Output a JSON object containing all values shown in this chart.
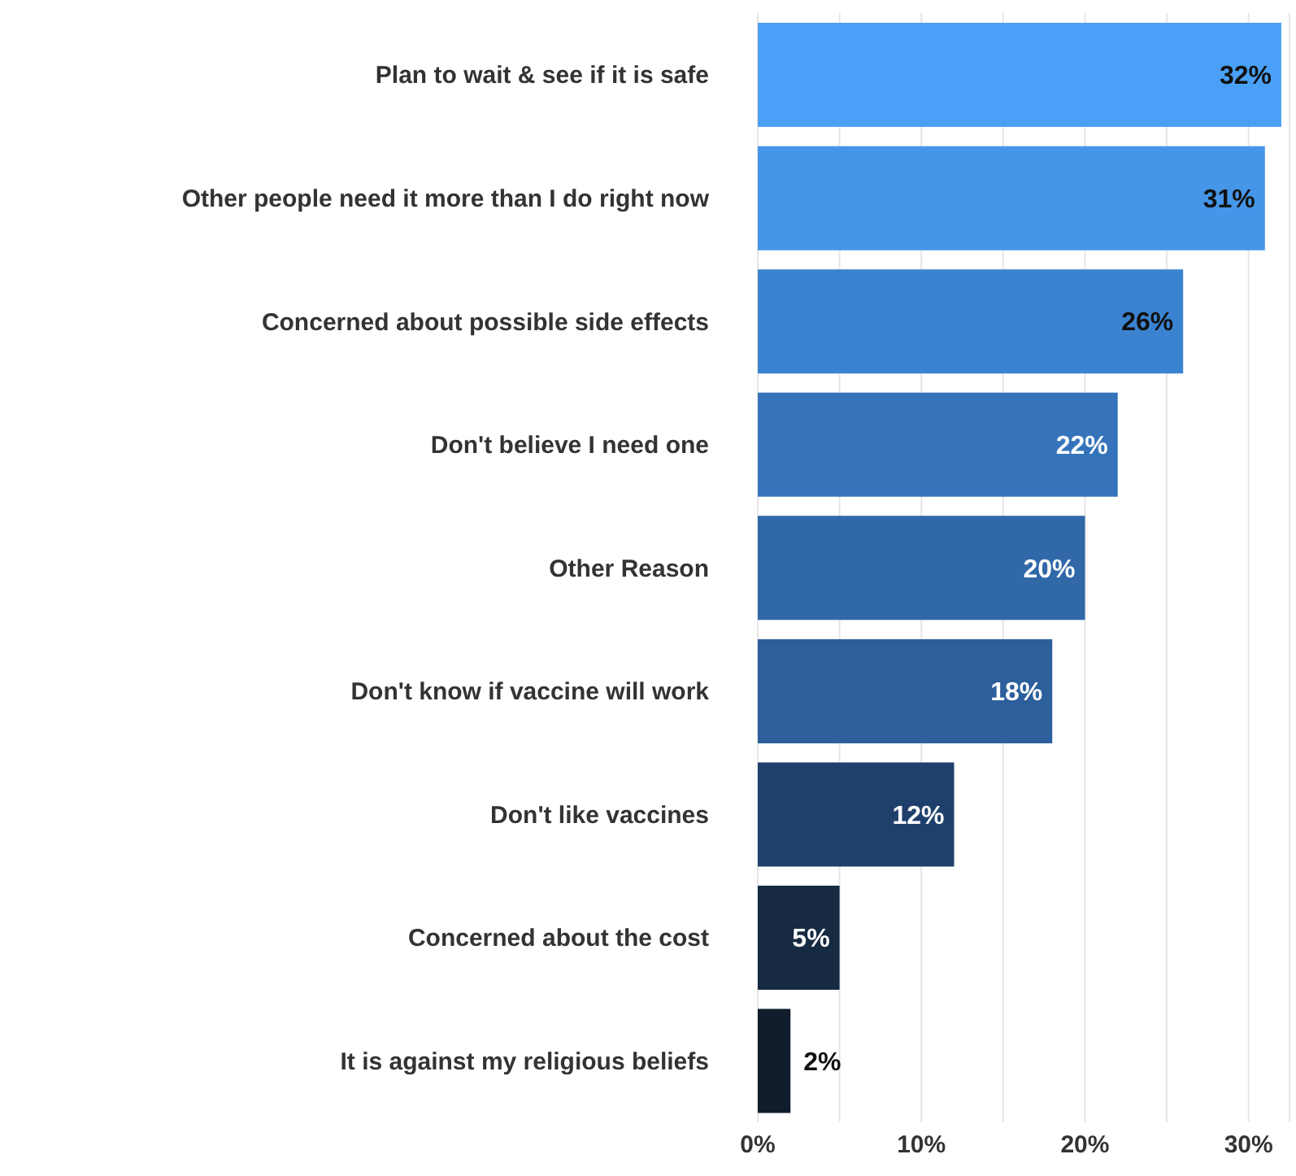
{
  "chart_data": {
    "type": "bar",
    "orientation": "horizontal",
    "categories": [
      "Plan to wait & see if it is safe",
      "Other people need it more than I do right now",
      "Concerned about possible side effects",
      "Don't believe I need one",
      "Other Reason",
      "Don't know if vaccine will work",
      "Don't like vaccines",
      "Concerned about the cost",
      "It is against my religious beliefs"
    ],
    "values": [
      32,
      31,
      26,
      22,
      20,
      18,
      12,
      5,
      2
    ],
    "colors": [
      "#4aa0f6",
      "#4596e8",
      "#3b83d0",
      "#3574bb",
      "#3068a8",
      "#2c5f9b",
      "#1f406c",
      "#162a42",
      "#111d2c"
    ],
    "value_labels": [
      "32%",
      "31%",
      "26%",
      "22%",
      "20%",
      "18%",
      "12%",
      "5%",
      "2%"
    ],
    "xlim": [
      0,
      32.5
    ],
    "xticks": [
      {
        "value": 0,
        "label": "0%"
      },
      {
        "value": 5,
        "label": null
      },
      {
        "value": 10,
        "label": "10%"
      },
      {
        "value": 15,
        "label": null
      },
      {
        "value": 20,
        "label": "20%"
      },
      {
        "value": 25,
        "label": null
      },
      {
        "value": 30,
        "label": "30%"
      }
    ],
    "grid": "x"
  }
}
